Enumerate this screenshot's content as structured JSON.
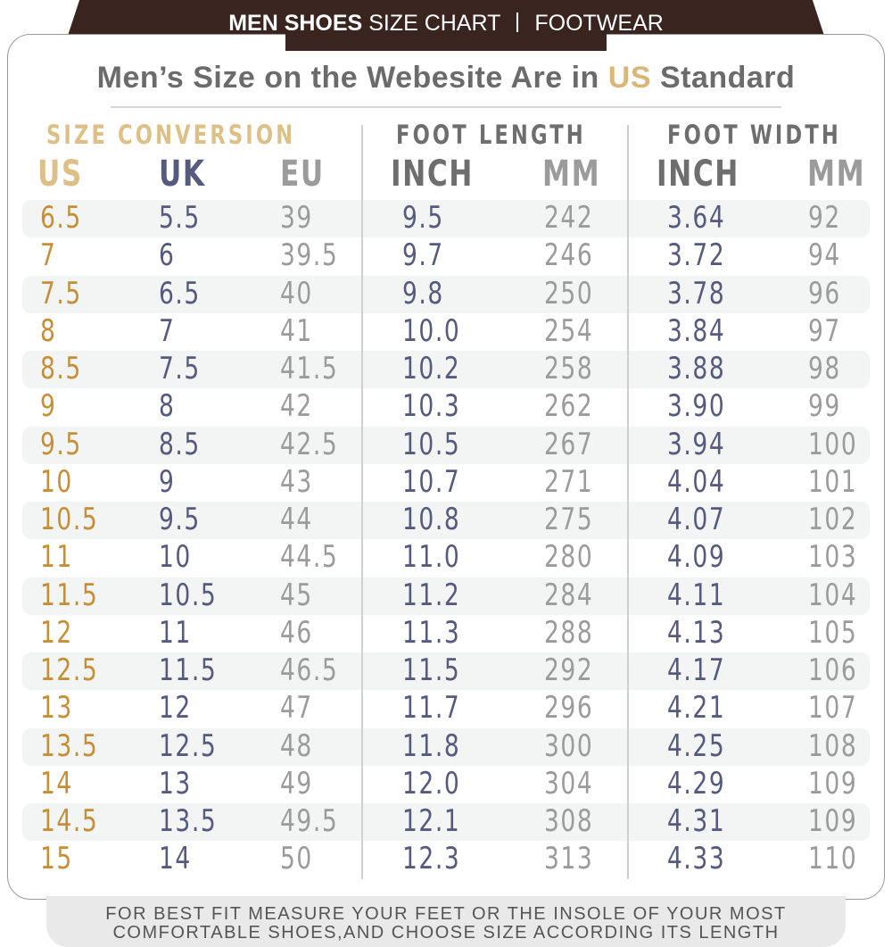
{
  "banner": {
    "bold": "MEN SHOES",
    "rest": "SIZE CHART",
    "right": "FOOTWEAR"
  },
  "title": {
    "before": "Men’s Size on the Webesite Are in ",
    "highlight": "US",
    "after": " Standard"
  },
  "groups": {
    "conversion": "SIZE CONVERSION",
    "length": "FOOT LENGTH",
    "width": "FOOT WIDTH"
  },
  "columns": [
    "US",
    "UK",
    "EU",
    "INCH",
    "MM",
    "INCH",
    "MM"
  ],
  "colors": {
    "banner": "#3a241f",
    "us": "#c68e37",
    "header_gold": "#dcc087",
    "navy": "#555a7e",
    "gray": "#9b9b9b"
  },
  "rows": [
    [
      "6.5",
      "5.5",
      "39",
      "9.5",
      "242",
      "3.64",
      "92"
    ],
    [
      "7",
      "6",
      "39.5",
      "9.7",
      "246",
      "3.72",
      "94"
    ],
    [
      "7.5",
      "6.5",
      "40",
      "9.8",
      "250",
      "3.78",
      "96"
    ],
    [
      "8",
      "7",
      "41",
      "10.0",
      "254",
      "3.84",
      "97"
    ],
    [
      "8.5",
      "7.5",
      "41.5",
      "10.2",
      "258",
      "3.88",
      "98"
    ],
    [
      "9",
      "8",
      "42",
      "10.3",
      "262",
      "3.90",
      "99"
    ],
    [
      "9.5",
      "8.5",
      "42.5",
      "10.5",
      "267",
      "3.94",
      "100"
    ],
    [
      "10",
      "9",
      "43",
      "10.7",
      "271",
      "4.04",
      "101"
    ],
    [
      "10.5",
      "9.5",
      "44",
      "10.8",
      "275",
      "4.07",
      "102"
    ],
    [
      "11",
      "10",
      "44.5",
      "11.0",
      "280",
      "4.09",
      "103"
    ],
    [
      "11.5",
      "10.5",
      "45",
      "11.2",
      "284",
      "4.11",
      "104"
    ],
    [
      "12",
      "11",
      "46",
      "11.3",
      "288",
      "4.13",
      "105"
    ],
    [
      "12.5",
      "11.5",
      "46.5",
      "11.5",
      "292",
      "4.17",
      "106"
    ],
    [
      "13",
      "12",
      "47",
      "11.7",
      "296",
      "4.21",
      "107"
    ],
    [
      "13.5",
      "12.5",
      "48",
      "11.8",
      "300",
      "4.25",
      "108"
    ],
    [
      "14",
      "13",
      "49",
      "12.0",
      "304",
      "4.29",
      "109"
    ],
    [
      "14.5",
      "13.5",
      "49.5",
      "12.1",
      "308",
      "4.31",
      "109"
    ],
    [
      "15",
      "14",
      "50",
      "12.3",
      "313",
      "4.33",
      "110"
    ]
  ],
  "footer": {
    "line1": "FOR BEST FIT MEASURE YOUR FEET OR THE INSOLE OF YOUR MOST",
    "line2": "COMFORTABLE SHOES,AND CHOOSE SIZE ACCORDING ITS LENGTH"
  }
}
